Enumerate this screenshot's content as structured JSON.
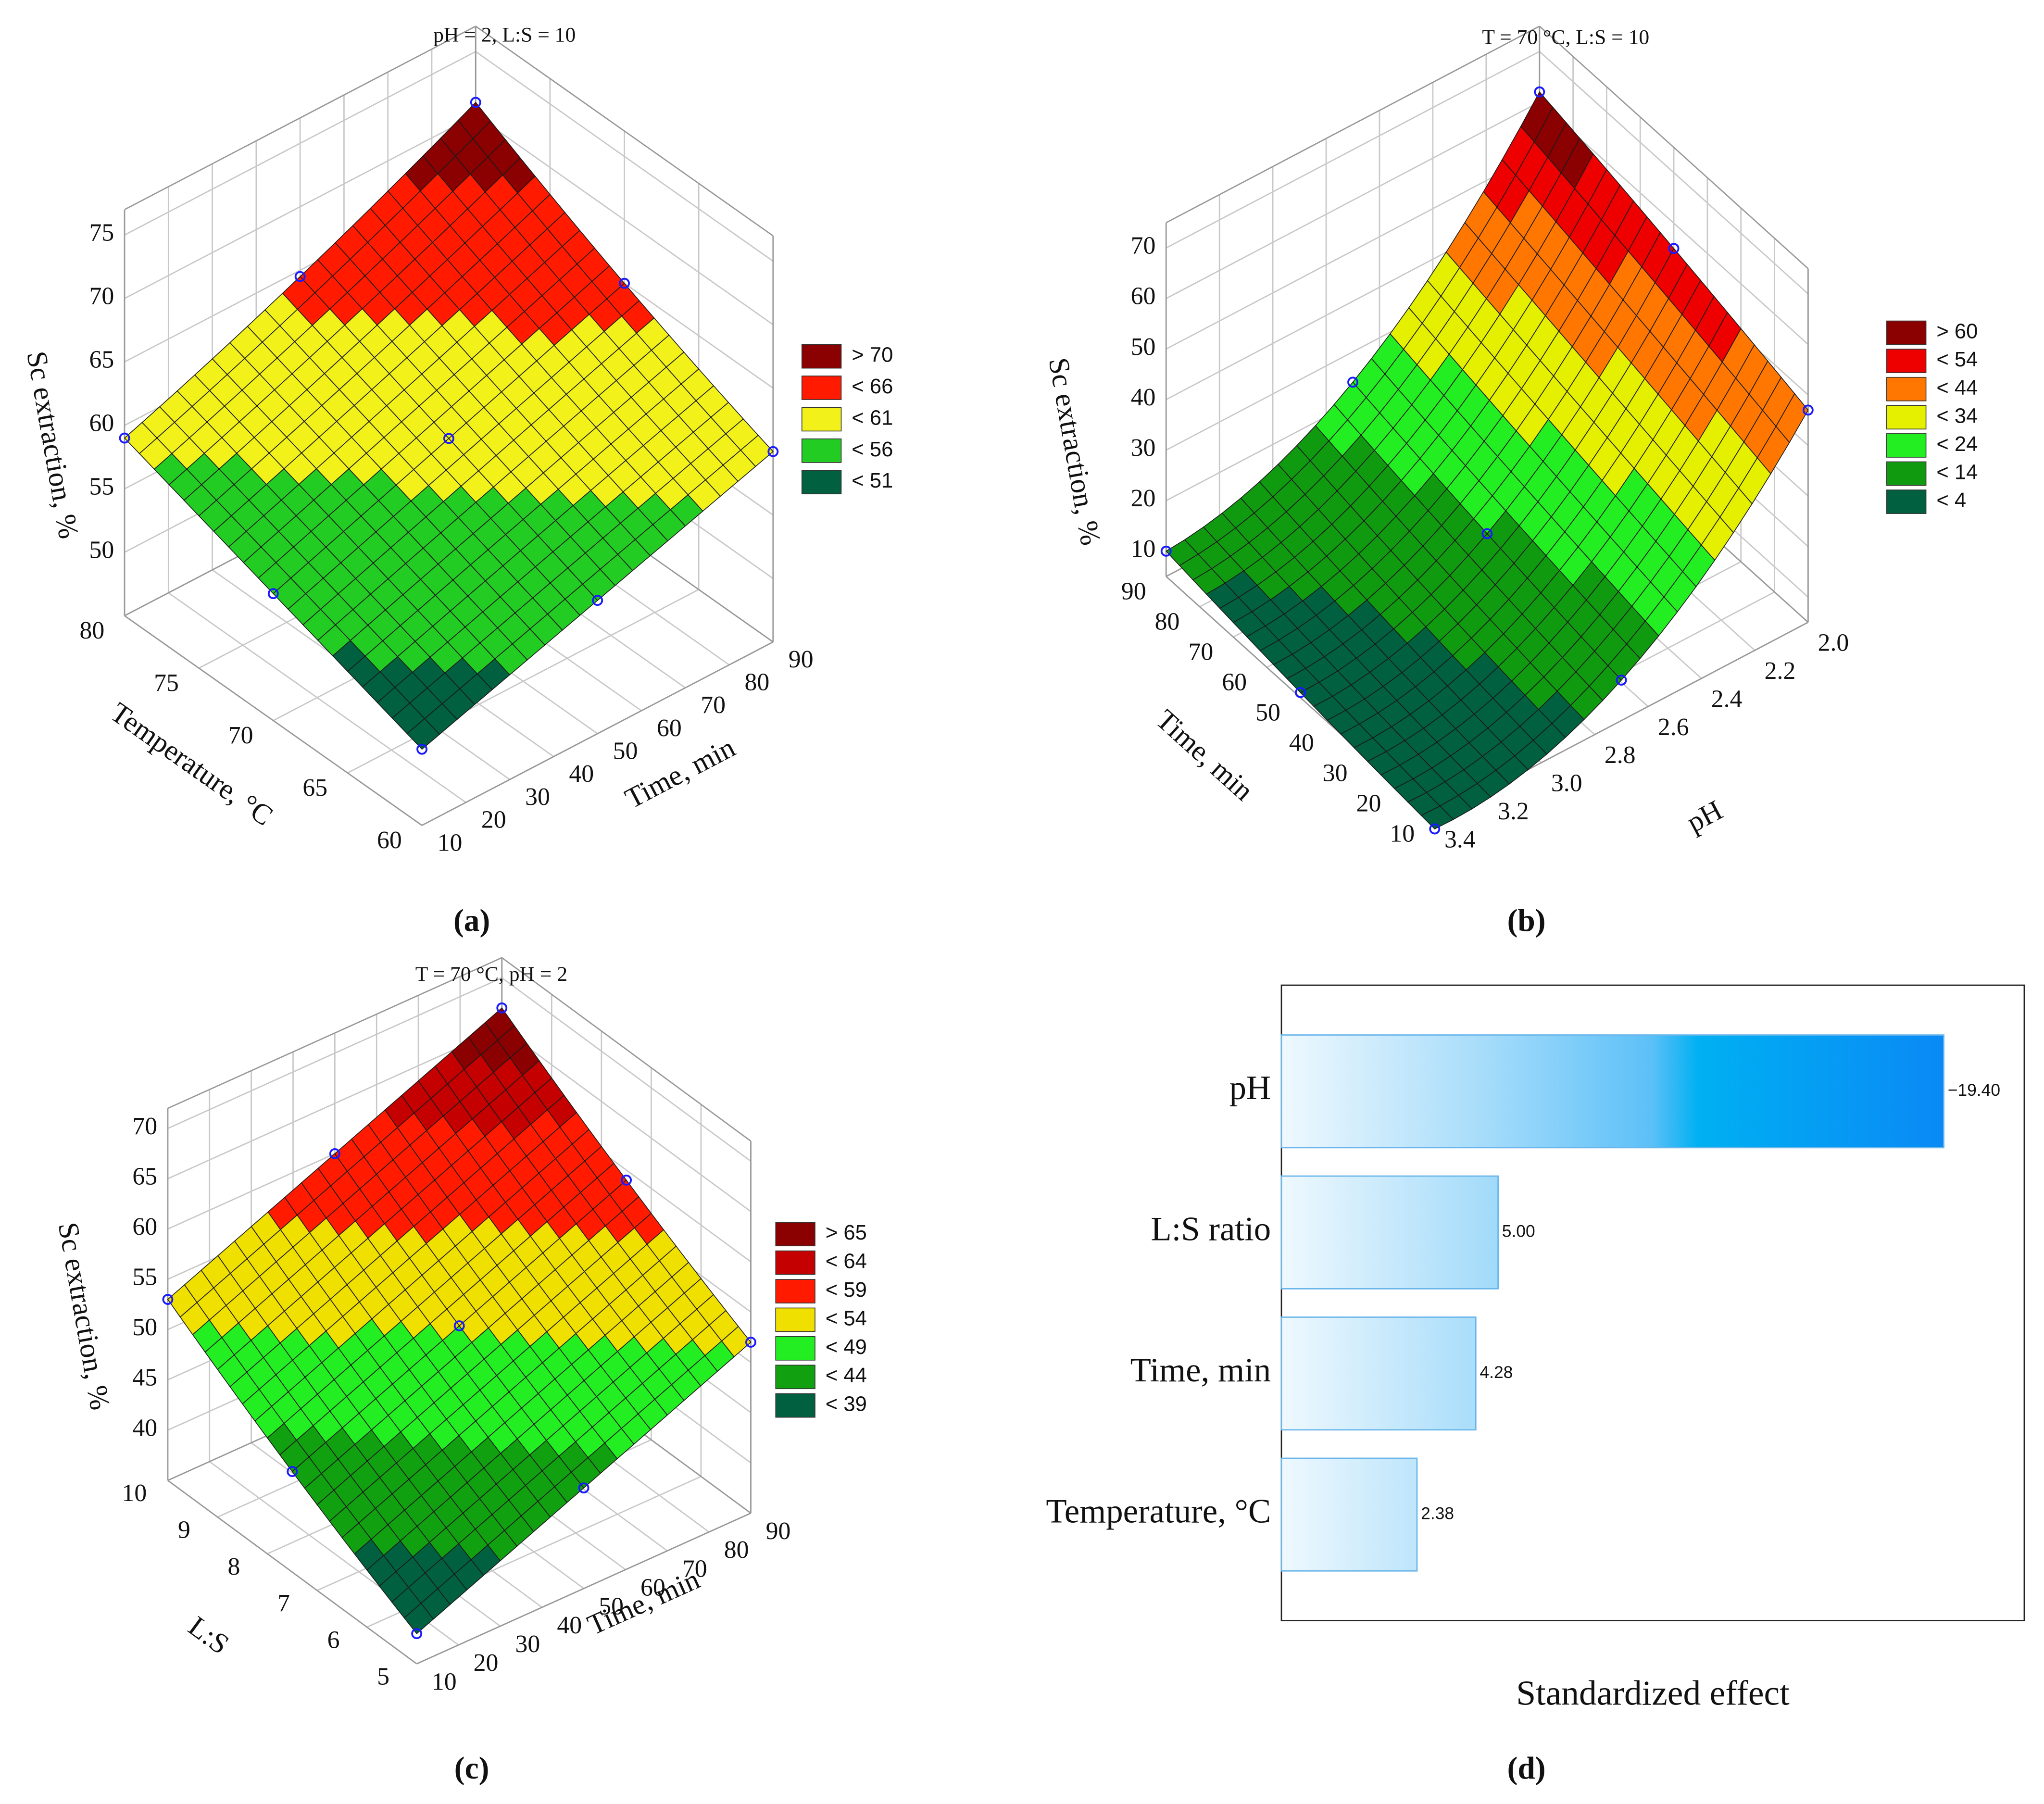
{
  "chart_data": [
    {
      "type": "surface",
      "label": "(a)",
      "title": "pH = 2, L:S = 10",
      "zlabel": "Sc extraction, %",
      "xlabel": "Temperature, °C",
      "ylabel": "Time, min",
      "x": [
        60,
        70,
        80
      ],
      "y": [
        10,
        50,
        90
      ],
      "z": [
        [
          51,
          55.5,
          60
        ],
        [
          55,
          60,
          65
        ],
        [
          59,
          64.5,
          71
        ]
      ],
      "xlim": [
        60,
        80
      ],
      "ylim": [
        10,
        90
      ],
      "zlim": [
        45,
        77
      ],
      "xticks": [
        60,
        65,
        70,
        75,
        80
      ],
      "yticks": [
        10,
        20,
        30,
        40,
        50,
        60,
        70,
        80,
        90
      ],
      "zticks": [
        50,
        55,
        60,
        65,
        70,
        75
      ],
      "legend": [
        {
          "value": 70,
          "label": "> 70",
          "color": "#8b0000"
        },
        {
          "value": 66,
          "label": "< 66",
          "color": "#ff1a00"
        },
        {
          "value": 61,
          "label": "< 61",
          "color": "#f2f21a"
        },
        {
          "value": 56,
          "label": "< 56",
          "color": "#22cc22"
        },
        {
          "value": 51,
          "label": "< 51",
          "color": "#006040"
        }
      ]
    },
    {
      "type": "surface",
      "label": "(b)",
      "title": "T = 70 °C, L:S = 10",
      "zlabel": "Sc extraction, %",
      "xlabel": "Time, min",
      "ylabel": "pH",
      "x": [
        10,
        50,
        90
      ],
      "y": [
        3.4,
        2.7,
        2.0
      ],
      "z": [
        [
          3,
          13,
          47
        ],
        [
          6,
          18,
          55
        ],
        [
          10,
          24,
          62
        ]
      ],
      "xlim": [
        10,
        90
      ],
      "ylim": [
        3.4,
        2.0
      ],
      "zlim": [
        5,
        75
      ],
      "xticks": [
        10,
        20,
        30,
        40,
        50,
        60,
        70,
        80,
        90
      ],
      "yticks": [
        {
          "value": 2,
          "label": "2.0"
        },
        2.2,
        2.4,
        2.6,
        2.8,
        {
          "value": 3,
          "label": "3.0"
        },
        3.2,
        3.4
      ],
      "zticks": [
        10,
        20,
        30,
        40,
        50,
        60,
        70
      ],
      "legend": [
        {
          "value": 60,
          "label": "> 60",
          "color": "#8b0000"
        },
        {
          "value": 54,
          "label": "< 54",
          "color": "#ee0000"
        },
        {
          "value": 44,
          "label": "< 44",
          "color": "#ff7700"
        },
        {
          "value": 34,
          "label": "< 34",
          "color": "#e5f000"
        },
        {
          "value": 24,
          "label": "< 24",
          "color": "#22ee22"
        },
        {
          "value": 14,
          "label": "< 14",
          "color": "#109a10"
        },
        {
          "value": 4,
          "label": "< 4",
          "color": "#006040"
        }
      ]
    },
    {
      "type": "surface",
      "label": "(c)",
      "title": "T = 70 °C, pH = 2",
      "zlabel": "Sc extraction, %",
      "xlabel": "L:S",
      "ylabel": "Time, min",
      "x": [
        5,
        7.5,
        10
      ],
      "y": [
        10,
        50,
        90
      ],
      "z": [
        [
          38,
          45,
          52
        ],
        [
          45,
          52,
          59
        ],
        [
          53,
          60,
          67
        ]
      ],
      "xlim": [
        5,
        10
      ],
      "ylim": [
        10,
        90
      ],
      "zlim": [
        35,
        72
      ],
      "xticks": [
        5,
        6,
        7,
        8,
        9,
        10
      ],
      "yticks": [
        10,
        20,
        30,
        40,
        50,
        60,
        70,
        80,
        90
      ],
      "zticks": [
        40,
        45,
        50,
        55,
        60,
        65,
        70
      ],
      "legend": [
        {
          "value": 65,
          "label": "> 65",
          "color": "#8b0000"
        },
        {
          "value": 64,
          "label": "< 64",
          "color": "#c40000"
        },
        {
          "value": 59,
          "label": "< 59",
          "color": "#ff1a00"
        },
        {
          "value": 54,
          "label": "< 54",
          "color": "#f0e000"
        },
        {
          "value": 49,
          "label": "< 49",
          "color": "#22ee22"
        },
        {
          "value": 44,
          "label": "< 44",
          "color": "#10a010"
        },
        {
          "value": 39,
          "label": "< 39",
          "color": "#006040"
        }
      ]
    },
    {
      "type": "bar",
      "label": "(d)",
      "xlabel": "Standardized effect",
      "categories": [
        "pH",
        "L:S ratio",
        "Time, min",
        "Temperature, °C"
      ],
      "values": [
        -19.4,
        5,
        4.28,
        2.38
      ],
      "value_labels": [
        "−19.40",
        "5.00",
        "4.28",
        "2.38"
      ],
      "xlim": [
        -2,
        22
      ]
    }
  ]
}
